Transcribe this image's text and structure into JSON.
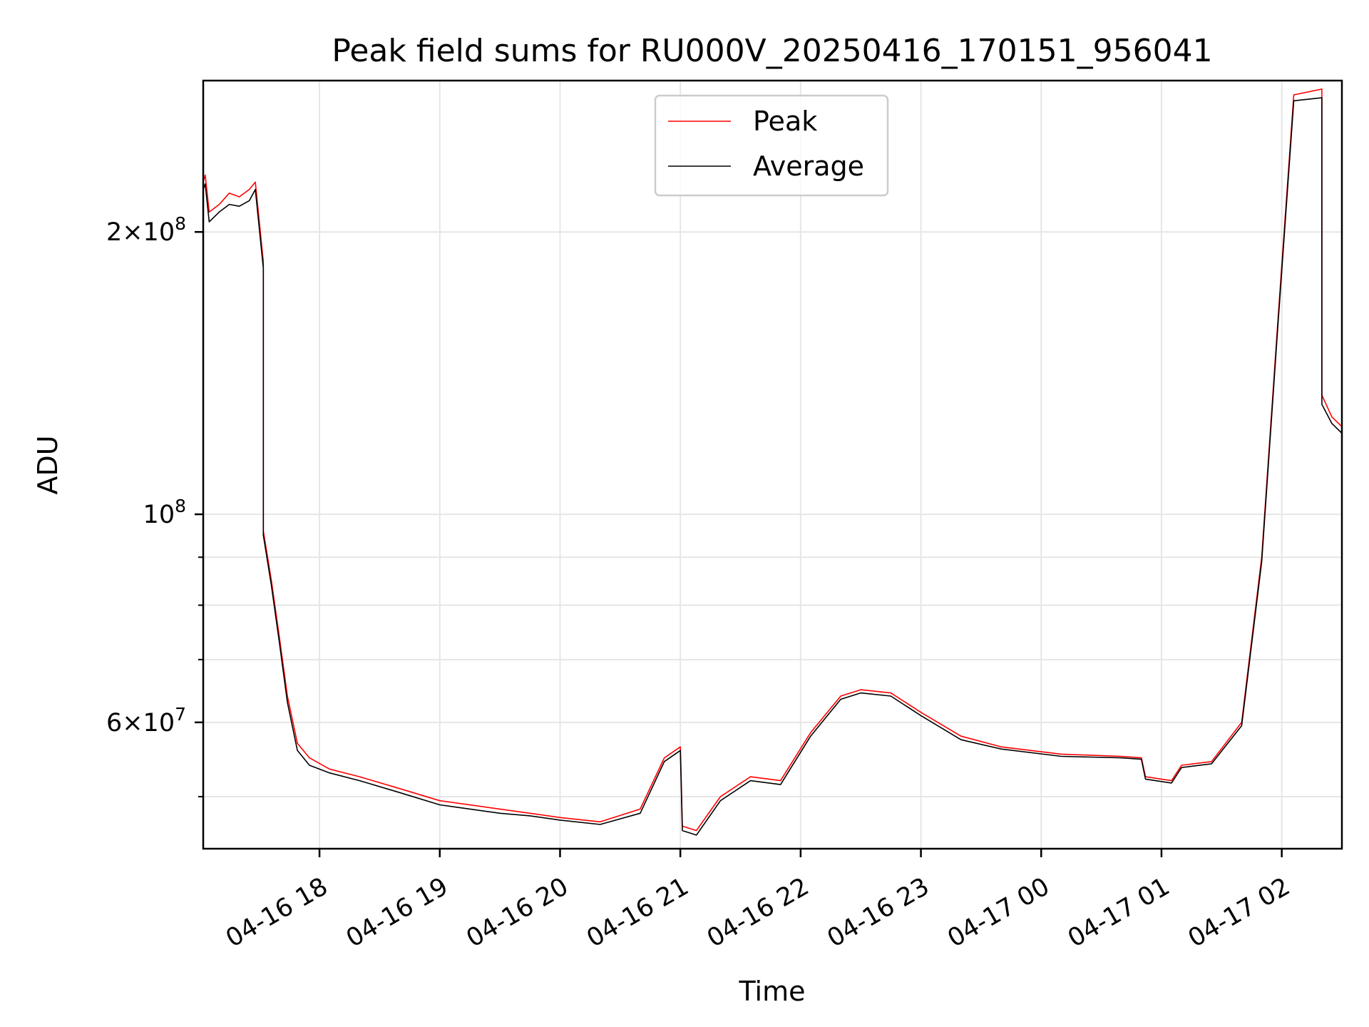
{
  "chart_data": {
    "type": "line",
    "title": "Peak field sums for RU000V_20250416_170151_956041",
    "xlabel": "Time",
    "ylabel": "ADU",
    "y_scale": "log",
    "grid": true,
    "legend_position": "top-center",
    "xlim": [
      "2025-04-16 17:02",
      "2025-04-17 02:30"
    ],
    "ylim": [
      44000000,
      290000000
    ],
    "x_ticks": [
      "2025-04-16 18:00",
      "2025-04-16 19:00",
      "2025-04-16 20:00",
      "2025-04-16 21:00",
      "2025-04-16 22:00",
      "2025-04-16 23:00",
      "2025-04-17 00:00",
      "2025-04-17 01:00",
      "2025-04-17 02:00"
    ],
    "x_tick_labels": [
      "04-16 18",
      "04-16 19",
      "04-16 20",
      "04-16 21",
      "04-16 22",
      "04-16 23",
      "04-17 00",
      "04-17 01",
      "04-17 02"
    ],
    "y_major_ticks": [
      {
        "value": 200000000,
        "mant": "2",
        "exp": "8"
      },
      {
        "value": 100000000,
        "mant": "",
        "exp": "8"
      },
      {
        "value": 60000000,
        "mant": "6",
        "exp": "7"
      }
    ],
    "y_minor_ticks": [
      50000000,
      70000000,
      80000000,
      90000000
    ],
    "series": [
      {
        "name": "Peak",
        "color": "#ff0000",
        "points": [
          [
            "2025-04-16 17:02",
            226000000
          ],
          [
            "2025-04-16 17:03",
            230000000
          ],
          [
            "2025-04-16 17:05",
            210000000
          ],
          [
            "2025-04-16 17:10",
            214000000
          ],
          [
            "2025-04-16 17:15",
            220000000
          ],
          [
            "2025-04-16 17:20",
            218000000
          ],
          [
            "2025-04-16 17:25",
            222000000
          ],
          [
            "2025-04-16 17:28",
            226000000
          ],
          [
            "2025-04-16 17:32",
            186000000
          ],
          [
            "2025-04-16 17:32",
            96000000
          ],
          [
            "2025-04-16 17:36",
            85000000
          ],
          [
            "2025-04-16 17:40",
            74000000
          ],
          [
            "2025-04-16 17:44",
            64000000
          ],
          [
            "2025-04-16 17:49",
            57000000
          ],
          [
            "2025-04-16 17:55",
            55000000
          ],
          [
            "2025-04-16 18:05",
            53500000
          ],
          [
            "2025-04-16 18:20",
            52500000
          ],
          [
            "2025-04-16 18:40",
            51000000
          ],
          [
            "2025-04-16 19:00",
            49500000
          ],
          [
            "2025-04-16 19:30",
            48500000
          ],
          [
            "2025-04-16 19:45",
            48000000
          ],
          [
            "2025-04-16 20:00",
            47500000
          ],
          [
            "2025-04-16 20:20",
            47000000
          ],
          [
            "2025-04-16 20:40",
            48500000
          ],
          [
            "2025-04-16 20:52",
            55000000
          ],
          [
            "2025-04-16 21:00",
            56500000
          ],
          [
            "2025-04-16 21:01",
            46500000
          ],
          [
            "2025-04-16 21:08",
            46000000
          ],
          [
            "2025-04-16 21:20",
            50000000
          ],
          [
            "2025-04-16 21:35",
            52500000
          ],
          [
            "2025-04-16 21:50",
            52000000
          ],
          [
            "2025-04-16 22:05",
            58500000
          ],
          [
            "2025-04-16 22:20",
            64000000
          ],
          [
            "2025-04-16 22:30",
            65000000
          ],
          [
            "2025-04-16 22:45",
            64500000
          ],
          [
            "2025-04-16 23:00",
            61500000
          ],
          [
            "2025-04-16 23:20",
            58000000
          ],
          [
            "2025-04-16 23:40",
            56500000
          ],
          [
            "2025-04-17 00:10",
            55500000
          ],
          [
            "2025-04-17 00:40",
            55200000
          ],
          [
            "2025-04-17 00:50",
            55000000
          ],
          [
            "2025-04-17 00:52",
            52500000
          ],
          [
            "2025-04-17 01:05",
            52000000
          ],
          [
            "2025-04-17 01:10",
            54000000
          ],
          [
            "2025-04-17 01:25",
            54500000
          ],
          [
            "2025-04-17 01:40",
            60000000
          ],
          [
            "2025-04-17 01:50",
            90000000
          ],
          [
            "2025-04-17 01:58",
            160000000
          ],
          [
            "2025-04-17 02:06",
            280000000
          ],
          [
            "2025-04-17 02:20",
            284000000
          ],
          [
            "2025-04-17 02:20",
            134000000
          ],
          [
            "2025-04-17 02:25",
            127000000
          ],
          [
            "2025-04-17 02:30",
            124000000
          ]
        ]
      },
      {
        "name": "Average",
        "color": "#000000",
        "points": [
          [
            "2025-04-16 17:02",
            222000000
          ],
          [
            "2025-04-16 17:03",
            225000000
          ],
          [
            "2025-04-16 17:05",
            205000000
          ],
          [
            "2025-04-16 17:10",
            210000000
          ],
          [
            "2025-04-16 17:15",
            214000000
          ],
          [
            "2025-04-16 17:20",
            213000000
          ],
          [
            "2025-04-16 17:25",
            216000000
          ],
          [
            "2025-04-16 17:28",
            222000000
          ],
          [
            "2025-04-16 17:32",
            183000000
          ],
          [
            "2025-04-16 17:32",
            95000000
          ],
          [
            "2025-04-16 17:36",
            84000000
          ],
          [
            "2025-04-16 17:40",
            73000000
          ],
          [
            "2025-04-16 17:44",
            63000000
          ],
          [
            "2025-04-16 17:49",
            56000000
          ],
          [
            "2025-04-16 17:55",
            54000000
          ],
          [
            "2025-04-16 18:05",
            53000000
          ],
          [
            "2025-04-16 18:20",
            52000000
          ],
          [
            "2025-04-16 18:40",
            50500000
          ],
          [
            "2025-04-16 19:00",
            49000000
          ],
          [
            "2025-04-16 19:30",
            48000000
          ],
          [
            "2025-04-16 19:45",
            47700000
          ],
          [
            "2025-04-16 20:00",
            47200000
          ],
          [
            "2025-04-16 20:20",
            46700000
          ],
          [
            "2025-04-16 20:40",
            48000000
          ],
          [
            "2025-04-16 20:52",
            54500000
          ],
          [
            "2025-04-16 21:00",
            56000000
          ],
          [
            "2025-04-16 21:01",
            46000000
          ],
          [
            "2025-04-16 21:08",
            45500000
          ],
          [
            "2025-04-16 21:20",
            49500000
          ],
          [
            "2025-04-16 21:35",
            52000000
          ],
          [
            "2025-04-16 21:50",
            51500000
          ],
          [
            "2025-04-16 22:05",
            58000000
          ],
          [
            "2025-04-16 22:20",
            63500000
          ],
          [
            "2025-04-16 22:30",
            64500000
          ],
          [
            "2025-04-16 22:45",
            64000000
          ],
          [
            "2025-04-16 23:00",
            61000000
          ],
          [
            "2025-04-16 23:20",
            57500000
          ],
          [
            "2025-04-16 23:40",
            56200000
          ],
          [
            "2025-04-17 00:10",
            55200000
          ],
          [
            "2025-04-17 00:40",
            55000000
          ],
          [
            "2025-04-17 00:50",
            54800000
          ],
          [
            "2025-04-17 00:52",
            52200000
          ],
          [
            "2025-04-17 01:05",
            51700000
          ],
          [
            "2025-04-17 01:10",
            53700000
          ],
          [
            "2025-04-17 01:25",
            54200000
          ],
          [
            "2025-04-17 01:40",
            59500000
          ],
          [
            "2025-04-17 01:50",
            89000000
          ],
          [
            "2025-04-17 01:58",
            158000000
          ],
          [
            "2025-04-17 02:06",
            276000000
          ],
          [
            "2025-04-17 02:20",
            278000000
          ],
          [
            "2025-04-17 02:20",
            131000000
          ],
          [
            "2025-04-17 02:25",
            125000000
          ],
          [
            "2025-04-17 02:30",
            122000000
          ]
        ]
      }
    ]
  }
}
